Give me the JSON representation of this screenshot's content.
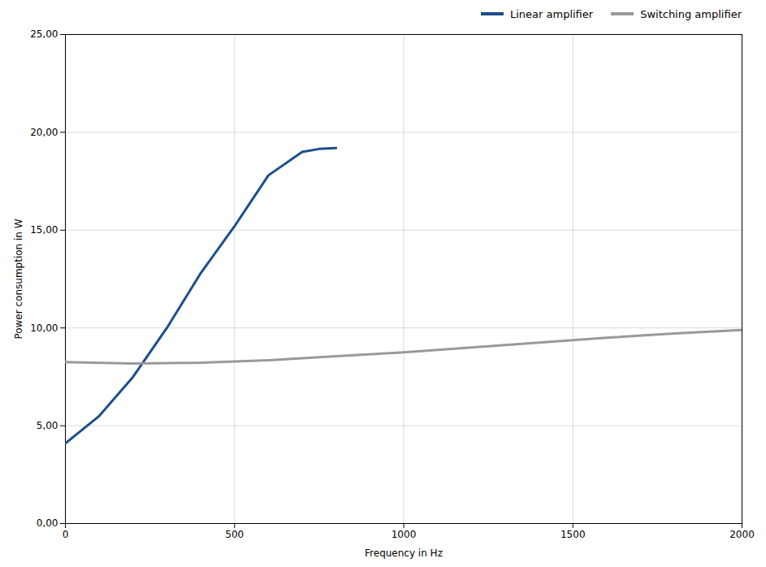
{
  "chart_data": {
    "type": "line",
    "xlabel": "Frequency in Hz",
    "ylabel": "Power consumption in W",
    "series": [
      {
        "name": "Linear amplifier",
        "color": "#1a4f8a",
        "x": [
          0,
          100,
          200,
          300,
          400,
          500,
          600,
          700,
          750,
          800
        ],
        "values": [
          4.1,
          5.5,
          7.5,
          10.0,
          12.8,
          15.2,
          17.8,
          19.0,
          19.15,
          19.2
        ]
      },
      {
        "name": "Switching amplifier",
        "color": "#999999",
        "x": [
          0,
          200,
          400,
          600,
          800,
          1000,
          1200,
          1400,
          1600,
          1800,
          2000
        ],
        "values": [
          8.25,
          8.18,
          8.22,
          8.35,
          8.55,
          8.75,
          9.0,
          9.25,
          9.5,
          9.72,
          9.9
        ]
      }
    ],
    "xlim": [
      0,
      2000
    ],
    "ylim": [
      0,
      25
    ],
    "xticks": [
      0,
      500,
      1000,
      1500,
      2000
    ],
    "yticks": [
      {
        "value": 0,
        "label": "0,00"
      },
      {
        "value": 5,
        "label": "5,00"
      },
      {
        "value": 10,
        "label": "10,00"
      },
      {
        "value": 15,
        "label": "15,00"
      },
      {
        "value": 20,
        "label": "20,00"
      },
      {
        "value": 25,
        "label": "25,00"
      }
    ],
    "grid": true,
    "legend": "upper right"
  }
}
